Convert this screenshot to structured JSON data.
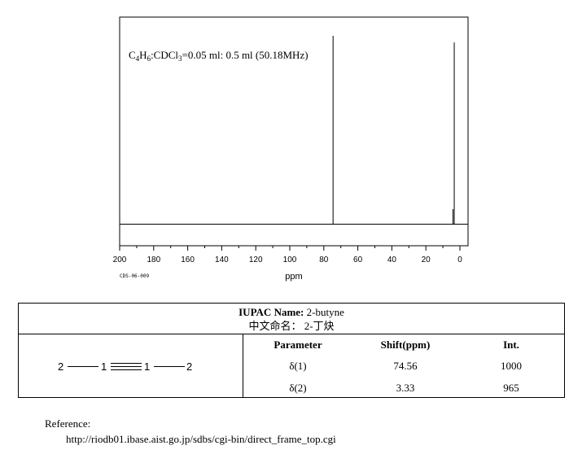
{
  "chart_data": {
    "type": "bar",
    "title": "C₄H₆:CDCl₃=0.05 ml: 0.5 ml (50.18MHz)",
    "title_parts": {
      "p1": "C",
      "s1": "4",
      "p2": "H",
      "s2": "6",
      "p3": ":CDCl",
      "s3": "3",
      "p4": "=0.05 ml: 0.5 ml (50.18MHz)"
    },
    "xlabel": "ppm",
    "ylabel": "",
    "x_axis_reversed": true,
    "xlim": [
      200,
      0
    ],
    "xticks": [
      200,
      180,
      160,
      140,
      120,
      100,
      80,
      60,
      40,
      20,
      0
    ],
    "ylim": [
      0,
      1000
    ],
    "grid": false,
    "code_label": "CDS-06-009",
    "peaks": [
      {
        "shift": 74.56,
        "intensity": 1000
      },
      {
        "shift": 3.33,
        "intensity": 965
      }
    ]
  },
  "table": {
    "iupac_label": "IUPAC Name:",
    "iupac_value": " 2-butyne",
    "cn_label": "中文命名：",
    "cn_value": " 2-丁炔",
    "headers": [
      "Parameter",
      "Shift(ppm)",
      "Int."
    ],
    "rows": [
      {
        "param": "δ(1)",
        "shift": "74.56",
        "int": "1000"
      },
      {
        "param": "δ(2)",
        "shift": "3.33",
        "int": "965"
      }
    ],
    "structure": {
      "end_left": "2",
      "center_left": "1",
      "center_right": "1",
      "end_right": "2"
    }
  },
  "reference": {
    "label": "Reference:",
    "url": "http://riodb01.ibase.aist.go.jp/sdbs/cgi-bin/direct_frame_top.cgi"
  }
}
